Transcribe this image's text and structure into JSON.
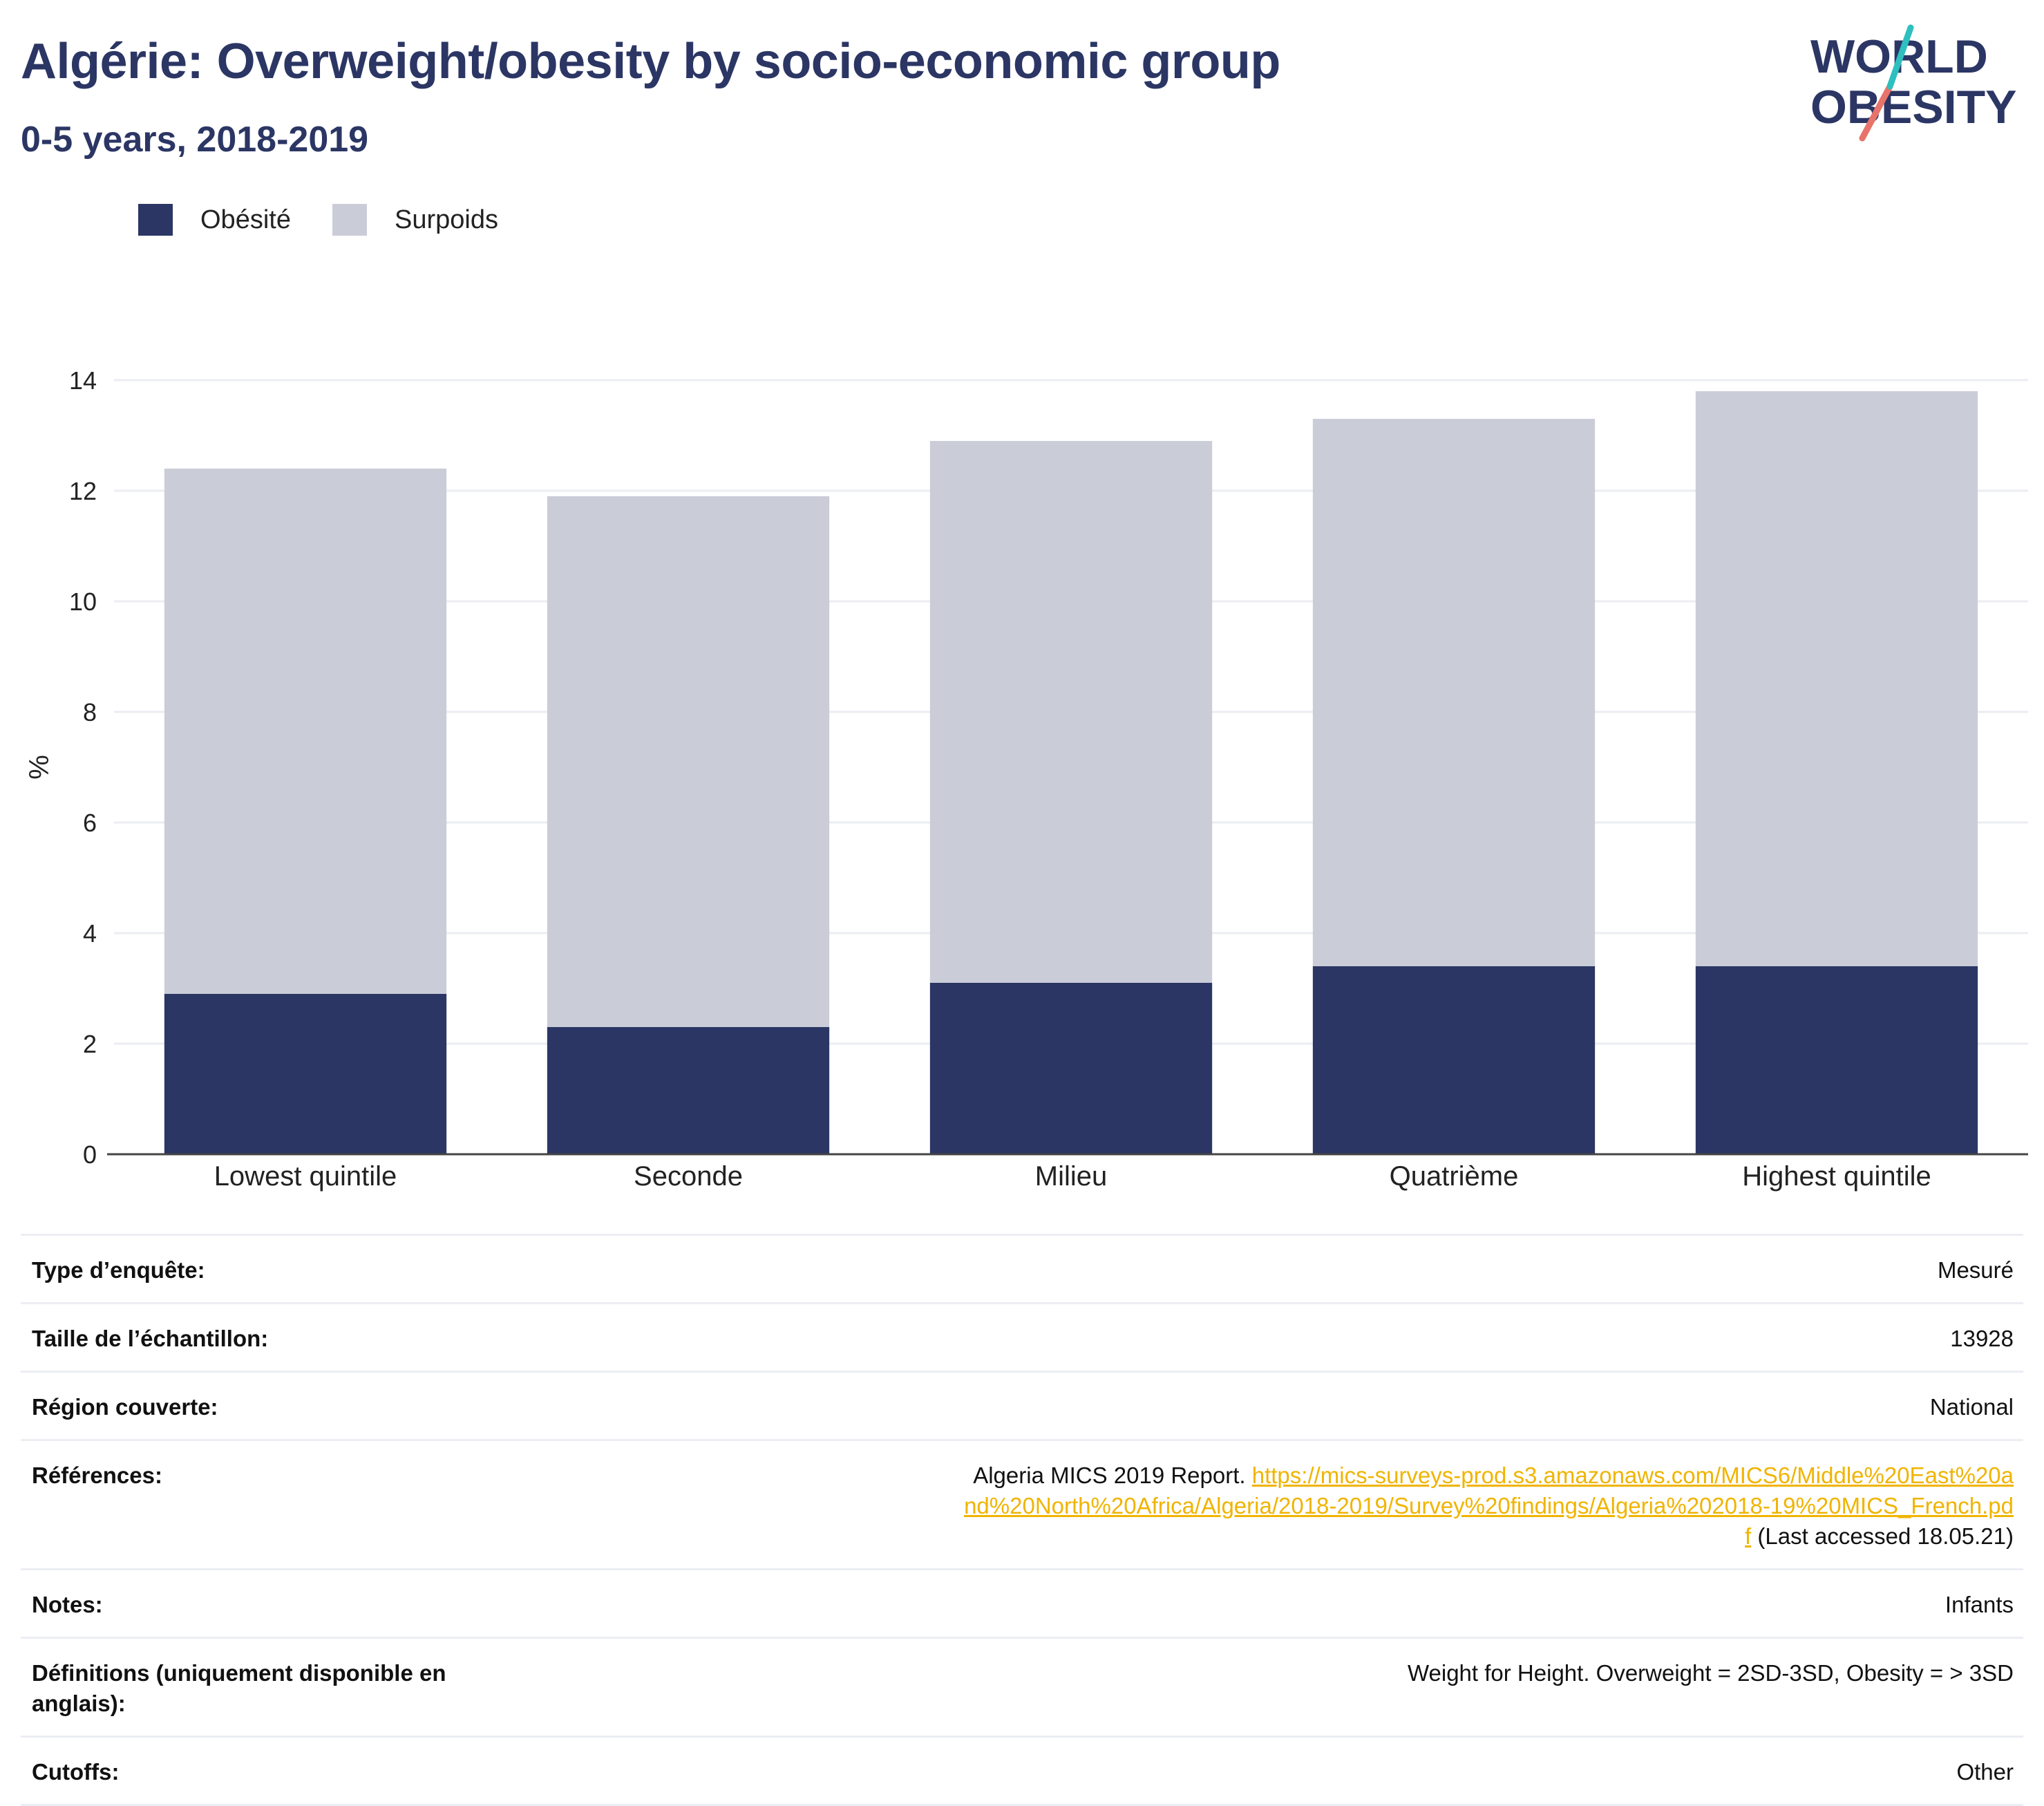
{
  "header": {
    "title": "Algérie: Overweight/obesity by socio-economic group",
    "subtitle": "0-5 years, 2018-2019"
  },
  "logo": {
    "line1": "WORLD",
    "line2": "OBESITY"
  },
  "colors": {
    "obesity": "#2b3664",
    "overweight": "#cacdd8",
    "title": "#2b3664",
    "link": "#f0b400",
    "accent_teal": "#2ebfbf",
    "accent_coral": "#e8736a"
  },
  "legend": [
    {
      "label": "Obésité",
      "color": "#2b3664"
    },
    {
      "label": "Surpoids",
      "color": "#cacdd8"
    }
  ],
  "chart_data": {
    "type": "bar",
    "stacked": true,
    "categories": [
      "Lowest quintile",
      "Seconde",
      "Milieu",
      "Quatrième",
      "Highest quintile"
    ],
    "series": [
      {
        "name": "Obésité",
        "values": [
          2.9,
          2.3,
          3.1,
          3.4,
          3.4
        ]
      },
      {
        "name": "Surpoids",
        "values": [
          9.5,
          9.6,
          9.8,
          9.9,
          10.4
        ]
      }
    ],
    "title": "Algérie: Overweight/obesity by socio-economic group",
    "xlabel": "",
    "ylabel": "%",
    "ylim": [
      0,
      14
    ],
    "yticks": [
      0,
      2,
      4,
      6,
      8,
      10,
      12,
      14
    ],
    "grid": true,
    "legend_position": "top-left"
  },
  "meta": {
    "survey_type": {
      "label": "Type d’enquête:",
      "value": "Mesuré"
    },
    "sample_size": {
      "label": "Taille de l’échantillon:",
      "value": "13928"
    },
    "region": {
      "label": "Région couverte:",
      "value": "National"
    },
    "references": {
      "label": "Références:",
      "text_before": "Algeria MICS 2019 Report. ",
      "link": "https://mics-surveys-prod.s3.amazonaws.com/MICS6/Middle%20East%20and%20North%20Africa/Algeria/2018-2019/Survey%20findings/Algeria%202018-19%20MICS_French.pdf",
      "text_after": " (Last accessed 18.05.21)"
    },
    "notes": {
      "label": "Notes:",
      "value": "Infants"
    },
    "definitions": {
      "label": "Définitions (uniquement disponible en anglais):",
      "value": "Weight for Height. Overweight = 2SD-3SD, Obesity = > 3SD"
    },
    "cutoffs": {
      "label": "Cutoffs:",
      "value": "Other"
    }
  }
}
